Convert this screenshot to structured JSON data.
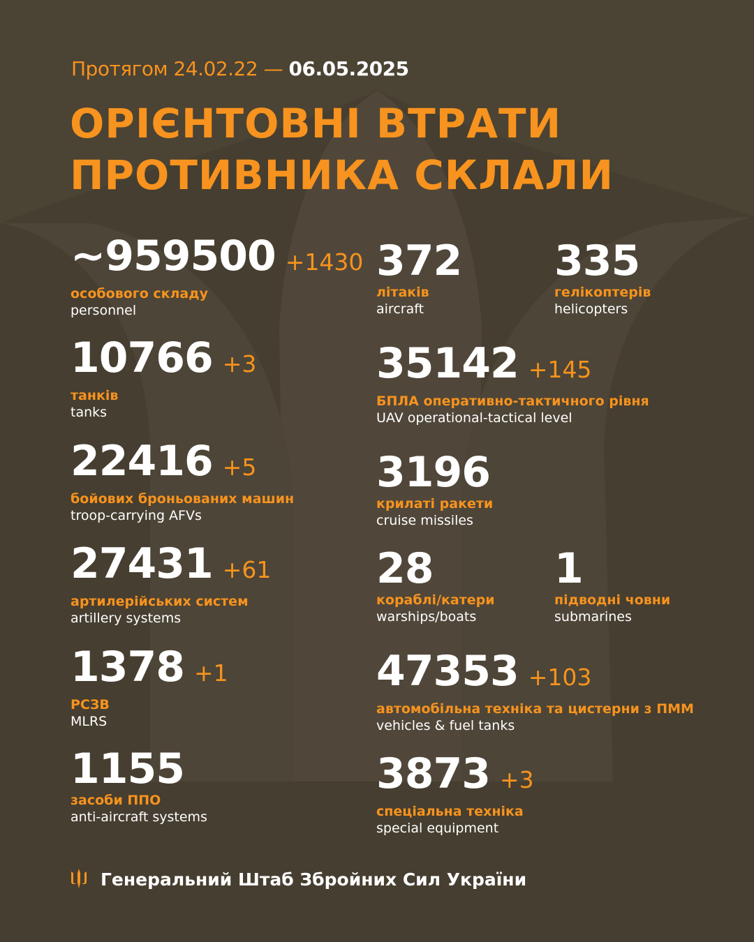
{
  "header": {
    "period_prefix": "Протягом 24.02.22 —",
    "period_date": "06.05.2025",
    "title_line1": "ОРІЄНТОВНІ ВТРАТИ",
    "title_line2": "ПРОТИВНИКА СКЛАЛИ"
  },
  "colors": {
    "background": "#463e30",
    "accent": "#f7931e",
    "text": "#ffffff"
  },
  "stats": {
    "personnel": {
      "value": "~959500",
      "delta": "+1430",
      "ua": "особового складу",
      "en": "personnel"
    },
    "tanks": {
      "value": "10766",
      "delta": "+3",
      "ua": "танків",
      "en": "tanks"
    },
    "afv": {
      "value": "22416",
      "delta": "+5",
      "ua": "бойових броньованих машин",
      "en": "troop-carrying AFVs"
    },
    "artillery": {
      "value": "27431",
      "delta": "+61",
      "ua": "артилерійських систем",
      "en": "artillery systems"
    },
    "mlrs": {
      "value": "1378",
      "delta": "+1",
      "ua": "РСЗВ",
      "en": "MLRS"
    },
    "air_defense": {
      "value": "1155",
      "ua": "засоби ППО",
      "en": "anti-aircraft systems"
    },
    "aircraft": {
      "value": "372",
      "ua": "літаків",
      "en": "aircraft"
    },
    "helicopters": {
      "value": "335",
      "ua": "гелікоптерів",
      "en": "helicopters"
    },
    "uav": {
      "value": "35142",
      "delta": "+145",
      "ua": "БПЛА оперативно-тактичного рівня",
      "en": "UAV operational-tactical level"
    },
    "cruise_missiles": {
      "value": "3196",
      "ua": "крилаті ракети",
      "en": "cruise missiles"
    },
    "warships": {
      "value": "28",
      "ua": "кораблі/катери",
      "en": "warships/boats"
    },
    "submarines": {
      "value": "1",
      "ua": "підводні човни",
      "en": "submarines"
    },
    "vehicles": {
      "value": "47353",
      "delta": "+103",
      "ua": "автомобільна техніка та цистерни з ПММ",
      "en": "vehicles & fuel tanks"
    },
    "special": {
      "value": "3873",
      "delta": "+3",
      "ua": "спеціальна техніка",
      "en": "special equipment"
    }
  },
  "footer": {
    "icon": "trident-icon",
    "text": "Генеральний Штаб Збройних Сил України"
  }
}
